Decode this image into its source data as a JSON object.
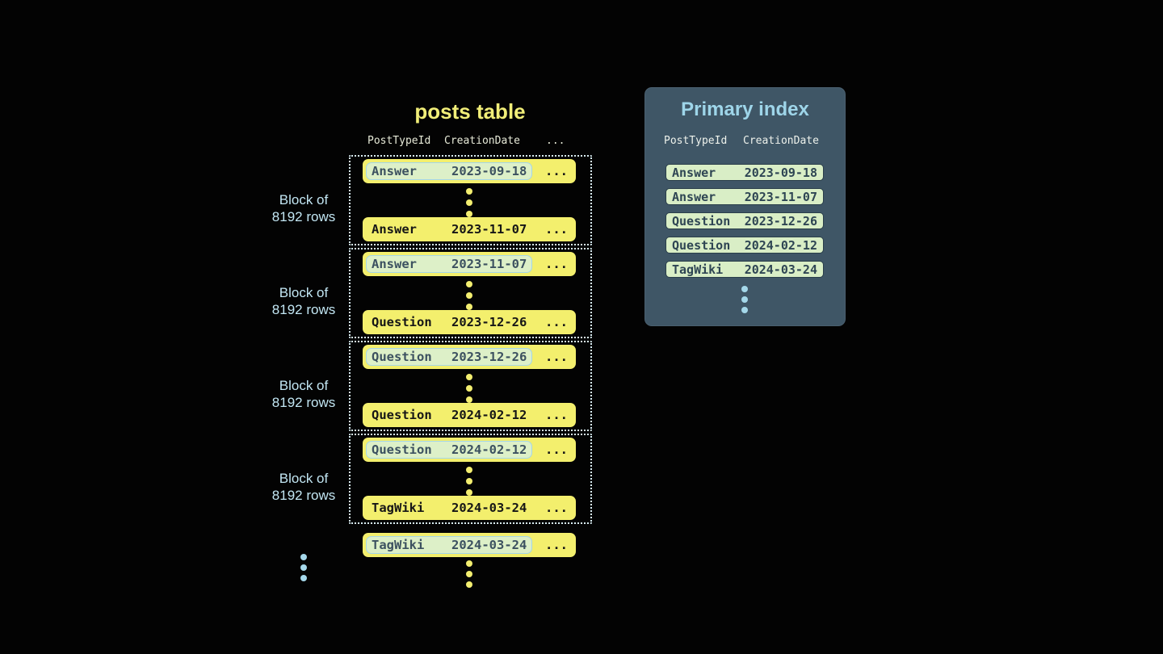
{
  "colors": {
    "background": "#030303",
    "row_yellow": "#f3ef6d",
    "highlight_green": "#ddf0c8",
    "highlight_border_blue": "#a5d6e8",
    "panel_slate": "#3f5666",
    "accent_light_blue": "#a5d8ea",
    "title_yellow": "#f1ee78",
    "title_blue": "#9ed5e9",
    "index_row_green": "#d9eec6"
  },
  "posts_table": {
    "title": "posts table",
    "headers": {
      "post_type": "PostTypeId",
      "creation_date": "CreationDate",
      "more": "..."
    },
    "blocks": [
      {
        "label_line1": "Block of",
        "label_line2": "8192 rows",
        "first_row": {
          "type": "Answer",
          "date": "2023-09-18",
          "more": "..."
        },
        "last_row": {
          "type": "Answer",
          "date": "2023-11-07",
          "more": "..."
        }
      },
      {
        "label_line1": "Block of",
        "label_line2": "8192 rows",
        "first_row": {
          "type": "Answer",
          "date": "2023-11-07",
          "more": "..."
        },
        "last_row": {
          "type": "Question",
          "date": "2023-12-26",
          "more": "..."
        }
      },
      {
        "label_line1": "Block of",
        "label_line2": "8192 rows",
        "first_row": {
          "type": "Question",
          "date": "2023-12-26",
          "more": "..."
        },
        "last_row": {
          "type": "Question",
          "date": "2024-02-12",
          "more": "..."
        }
      },
      {
        "label_line1": "Block of",
        "label_line2": "8192 rows",
        "first_row": {
          "type": "Question",
          "date": "2024-02-12",
          "more": "..."
        },
        "last_row": {
          "type": "TagWiki",
          "date": "2024-03-24",
          "more": "..."
        }
      }
    ],
    "trailing_row": {
      "type": "TagWiki",
      "date": "2024-03-24",
      "more": "..."
    }
  },
  "primary_index": {
    "title": "Primary index",
    "headers": {
      "post_type": "PostTypeId",
      "creation_date": "CreationDate"
    },
    "rows": [
      {
        "type": "Answer",
        "date": "2023-09-18"
      },
      {
        "type": "Answer",
        "date": "2023-11-07"
      },
      {
        "type": "Question",
        "date": "2023-12-26"
      },
      {
        "type": "Question",
        "date": "2024-02-12"
      },
      {
        "type": "TagWiki",
        "date": "2024-03-24"
      }
    ]
  }
}
